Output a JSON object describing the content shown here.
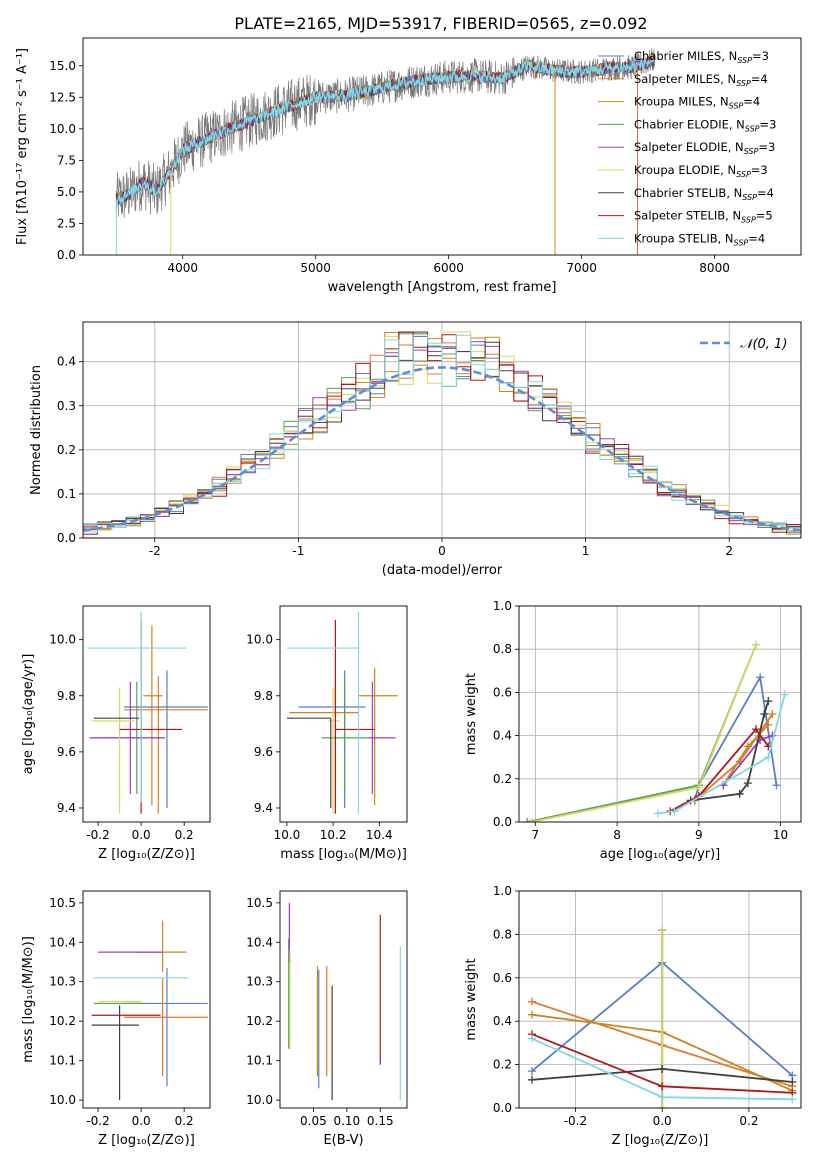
{
  "figure": {
    "title": "PLATE=2165, MJD=53917, FIBERID=0565, z=0.092"
  },
  "models": [
    {
      "name": "Chabrier MILES",
      "nssp": "3",
      "color": "#5a7ec4"
    },
    {
      "name": "Salpeter MILES",
      "nssp": "4",
      "color": "#e07b2a"
    },
    {
      "name": "Kroupa MILES",
      "nssp": "4",
      "color": "#c8871e"
    },
    {
      "name": "Chabrier ELODIE",
      "nssp": "3",
      "color": "#5aa05a"
    },
    {
      "name": "Salpeter ELODIE",
      "nssp": "3",
      "color": "#a040c0"
    },
    {
      "name": "Kroupa ELODIE",
      "nssp": "3",
      "color": "#d8d860"
    },
    {
      "name": "Chabrier STELIB",
      "nssp": "4",
      "color": "#404040"
    },
    {
      "name": "Salpeter STELIB",
      "nssp": "5",
      "color": "#b01818"
    },
    {
      "name": "Kroupa STELIB",
      "nssp": "4",
      "color": "#80d8e0"
    }
  ],
  "chart_data": [
    {
      "id": "spectrum",
      "type": "line",
      "xlabel": "wavelength [Angstrom, rest frame]",
      "ylabel": "Flux [fλ10⁻¹⁷ erg cm⁻² s⁻¹ A⁻¹]",
      "xlim": [
        3250,
        8650
      ],
      "ylim": [
        0,
        17.2
      ],
      "xticks": [
        4000,
        5000,
        6000,
        7000,
        8000
      ],
      "yticks": [
        0.0,
        2.5,
        5.0,
        7.5,
        10.0,
        12.5,
        15.0
      ],
      "data_range": [
        3500,
        7550
      ],
      "continuum": {
        "x": [
          3500,
          3600,
          3700,
          3800,
          3900,
          4000,
          4200,
          4400,
          4600,
          4800,
          5000,
          5200,
          5400,
          5600,
          5800,
          6000,
          6200,
          6400,
          6600,
          6800,
          7000,
          7200,
          7400,
          7550
        ],
        "y": [
          4.4,
          4.8,
          5.8,
          5.0,
          6.5,
          8.3,
          9.3,
          10.2,
          11.0,
          11.8,
          12.5,
          12.6,
          13.0,
          13.5,
          13.9,
          14.1,
          14.2,
          14.0,
          15.0,
          14.6,
          14.5,
          14.8,
          14.9,
          15.5
        ]
      },
      "legend_loc": "upper right"
    },
    {
      "id": "residual-histogram",
      "type": "histogram",
      "xlabel": "(data-model)/error",
      "ylabel": "Normed distribution",
      "xlim": [
        -2.5,
        2.5
      ],
      "ylim": [
        0,
        0.49
      ],
      "xticks": [
        -2,
        -1,
        0,
        1,
        2
      ],
      "yticks": [
        0.0,
        0.1,
        0.2,
        0.3,
        0.4
      ],
      "gaussian_label": "𝒩(0, 1)",
      "gaussian_color": "#5b8ed6",
      "bin_edges_start": -2.5,
      "bin_width": 0.1,
      "grid": true
    },
    {
      "id": "age-vs-Z",
      "type": "errorbar",
      "xlabel": "Z [log₁₀(Z/Z⊙)]",
      "ylabel": "age  [log₁₀(age/yr)]",
      "xlim": [
        -0.27,
        0.32
      ],
      "ylim": [
        9.35,
        10.12
      ],
      "xticks": [
        -0.2,
        0.0,
        0.2
      ],
      "yticks": [
        9.4,
        9.6,
        9.8,
        10.0
      ],
      "points": [
        {
          "x": 0.12,
          "y": 9.76,
          "xerr": [
            0.2,
            0.19
          ],
          "yerr": [
            0.36,
            0.13
          ]
        },
        {
          "x": 0.08,
          "y": 9.75,
          "xerr": [
            0.16,
            0.23
          ],
          "yerr": [
            0.37,
            0.12
          ]
        },
        {
          "x": 0.05,
          "y": 9.8,
          "xerr": [
            0.04,
            0.05
          ],
          "yerr": [
            0.39,
            0.25
          ]
        },
        {
          "x": -0.02,
          "y": 9.65,
          "xerr": [
            0.22,
            0.13
          ],
          "yerr": [
            0.2,
            0.2
          ]
        },
        {
          "x": -0.05,
          "y": 9.65,
          "xerr": [
            0.19,
            0.16
          ],
          "yerr": [
            0.2,
            0.2
          ]
        },
        {
          "x": -0.1,
          "y": 9.71,
          "xerr": [
            0.13,
            0.07
          ],
          "yerr": [
            0.33,
            0.12
          ]
        },
        {
          "x": -0.2,
          "y": 9.72,
          "xerr": [
            0.02,
            0.19
          ],
          "yerr": [
            0.0,
            0.0
          ]
        },
        {
          "x": 0.0,
          "y": 9.68,
          "xerr": [
            0.1,
            0.19
          ],
          "yerr": [
            0.3,
            0.39
          ]
        },
        {
          "x": 0.0,
          "y": 9.97,
          "xerr": [
            0.25,
            0.21
          ],
          "yerr": [
            0.55,
            0.13
          ]
        }
      ]
    },
    {
      "id": "age-vs-mass",
      "type": "errorbar",
      "xlabel": "mass [log₁₀(M/M⊙)]",
      "ylabel": "",
      "xlim": [
        9.97,
        10.52
      ],
      "ylim": [
        9.35,
        10.12
      ],
      "xticks": [
        10.0,
        10.2,
        10.4
      ],
      "yticks": [
        9.4,
        9.6,
        9.8,
        10.0
      ],
      "points": [
        {
          "x": 10.25,
          "y": 9.76,
          "xerr": [
            0.2,
            0.09
          ],
          "yerr": [
            0.36,
            0.13
          ]
        },
        {
          "x": 10.21,
          "y": 9.74,
          "xerr": [
            0.2,
            0.1
          ],
          "yerr": [
            0.36,
            0.12
          ]
        },
        {
          "x": 10.38,
          "y": 9.8,
          "xerr": [
            0.07,
            0.1
          ],
          "yerr": [
            0.39,
            0.1
          ]
        },
        {
          "x": 10.25,
          "y": 9.65,
          "xerr": [
            0.1,
            0.1
          ],
          "yerr": [
            0.2,
            0.2
          ]
        },
        {
          "x": 10.37,
          "y": 9.65,
          "xerr": [
            0.02,
            0.1
          ],
          "yerr": [
            0.2,
            0.2
          ]
        },
        {
          "x": 10.2,
          "y": 9.71,
          "xerr": [
            0.02,
            0.03
          ],
          "yerr": [
            0.33,
            0.12
          ]
        },
        {
          "x": 10.19,
          "y": 9.72,
          "xerr": [
            0.19,
            0.0
          ],
          "yerr": [
            0.32,
            0.0
          ]
        },
        {
          "x": 10.21,
          "y": 9.68,
          "xerr": [
            0.0,
            0.17
          ],
          "yerr": [
            0.3,
            0.39
          ]
        },
        {
          "x": 10.31,
          "y": 9.97,
          "xerr": [
            0.31,
            0.0
          ],
          "yerr": [
            0.59,
            0.13
          ]
        }
      ]
    },
    {
      "id": "weight-vs-age",
      "type": "line",
      "xlabel": "age  [log₁₀(age/yr)]",
      "ylabel": "mass weight",
      "xlim": [
        6.8,
        10.25
      ],
      "ylim": [
        0,
        1.0
      ],
      "xticks": [
        7,
        8,
        9,
        10
      ],
      "yticks": [
        0.0,
        0.2,
        0.4,
        0.6,
        0.8,
        1.0
      ],
      "series": [
        {
          "x": [
            8.95,
            9.0,
            9.75,
            9.95
          ],
          "y": [
            0.1,
            0.17,
            0.67,
            0.17
          ]
        },
        {
          "x": [
            8.95,
            9.5,
            9.9
          ],
          "y": [
            0.1,
            0.28,
            0.5
          ]
        },
        {
          "x": [
            9.3,
            9.6,
            9.85
          ],
          "y": [
            0.17,
            0.35,
            0.45
          ]
        },
        {
          "x": [
            6.9,
            9.0,
            9.7
          ],
          "y": [
            0.0,
            0.17,
            0.82
          ]
        },
        {
          "x": [
            9.3,
            9.75,
            9.9
          ],
          "y": [
            0.17,
            0.38,
            0.4
          ]
        },
        {
          "x": [
            6.95,
            9.0,
            9.7
          ],
          "y": [
            0.0,
            0.16,
            0.82
          ]
        },
        {
          "x": [
            8.9,
            9.5,
            9.6,
            9.8,
            9.85
          ],
          "y": [
            0.1,
            0.13,
            0.18,
            0.5,
            0.56
          ]
        },
        {
          "x": [
            8.65,
            9.0,
            9.7,
            9.85
          ],
          "y": [
            0.05,
            0.12,
            0.43,
            0.35
          ]
        },
        {
          "x": [
            8.5,
            8.7,
            9.85,
            10.05
          ],
          "y": [
            0.04,
            0.05,
            0.3,
            0.59
          ]
        }
      ]
    },
    {
      "id": "mass-vs-Z",
      "type": "errorbar",
      "xlabel": "Z [log₁₀(Z/Z⊙)]",
      "ylabel": "mass [log₁₀(M/M⊙)]",
      "xlim": [
        -0.27,
        0.32
      ],
      "ylim": [
        9.98,
        10.53
      ],
      "xticks": [
        -0.2,
        0.0,
        0.2
      ],
      "yticks": [
        10.0,
        10.1,
        10.2,
        10.3,
        10.4,
        10.5
      ],
      "points": [
        {
          "x": 0.12,
          "y": 10.245,
          "xerr": [
            0.2,
            0.19
          ],
          "yerr": [
            0.21,
            0.09
          ]
        },
        {
          "x": 0.1,
          "y": 10.21,
          "xerr": [
            0.18,
            0.21
          ],
          "yerr": [
            0.15,
            0.1
          ]
        },
        {
          "x": 0.1,
          "y": 10.375,
          "xerr": [
            0.12,
            0.11
          ],
          "yerr": [
            0.05,
            0.08
          ]
        },
        {
          "x": -0.1,
          "y": 10.245,
          "xerr": [
            0.12,
            0.13
          ],
          "yerr": [
            0.0,
            0.0
          ]
        },
        {
          "x": -0.1,
          "y": 10.375,
          "xerr": [
            0.1,
            0.2
          ],
          "yerr": [
            0.0,
            0.0
          ]
        },
        {
          "x": -0.1,
          "y": 10.25,
          "xerr": [
            0.1,
            0.1
          ],
          "yerr": [
            0.0,
            0.0
          ]
        },
        {
          "x": -0.1,
          "y": 10.19,
          "xerr": [
            0.13,
            0.09
          ],
          "yerr": [
            0.19,
            0.05
          ]
        },
        {
          "x": -0.1,
          "y": 10.215,
          "xerr": [
            0.13,
            0.19
          ],
          "yerr": [
            0.0,
            0.0
          ]
        },
        {
          "x": 0.0,
          "y": 10.31,
          "xerr": [
            0.22,
            0.22
          ],
          "yerr": [
            0.0,
            0.0
          ]
        }
      ]
    },
    {
      "id": "mass-vs-ebv",
      "type": "errorbar",
      "xlabel": "E(B-V)",
      "ylabel": "",
      "xlim": [
        0.0,
        0.19
      ],
      "ylim": [
        9.98,
        10.53
      ],
      "xticks": [
        0.05,
        0.1,
        0.15
      ],
      "yticks": [
        10.0,
        10.1,
        10.2,
        10.3,
        10.4,
        10.5
      ],
      "points": [
        {
          "x": 0.058,
          "y": 10.2,
          "yerr": [
            0.17,
            0.13
          ]
        },
        {
          "x": 0.07,
          "y": 10.2,
          "yerr": [
            0.14,
            0.14
          ]
        },
        {
          "x": 0.056,
          "y": 10.2,
          "yerr": [
            0.14,
            0.14
          ]
        },
        {
          "x": 0.013,
          "y": 10.27,
          "yerr": [
            0.14,
            0.14
          ]
        },
        {
          "x": 0.014,
          "y": 10.4,
          "yerr": [
            0.05,
            0.1
          ]
        },
        {
          "x": 0.015,
          "y": 10.25,
          "yerr": [
            0.12,
            0.13
          ]
        },
        {
          "x": 0.078,
          "y": 10.15,
          "yerr": [
            0.15,
            0.14
          ]
        },
        {
          "x": 0.15,
          "y": 10.28,
          "yerr": [
            0.19,
            0.19
          ]
        },
        {
          "x": 0.18,
          "y": 10.2,
          "yerr": [
            0.2,
            0.19
          ]
        }
      ]
    },
    {
      "id": "weight-vs-Z",
      "type": "line",
      "xlabel": "Z [log₁₀(Z/Z⊙)]",
      "ylabel": "mass weight",
      "xlim": [
        -0.33,
        0.32
      ],
      "ylim": [
        0,
        1.0
      ],
      "xticks": [
        -0.2,
        0.0,
        0.2
      ],
      "yticks": [
        0.0,
        0.2,
        0.4,
        0.6,
        0.8,
        1.0
      ],
      "series": [
        {
          "x": [
            -0.3,
            0.0,
            0.3
          ],
          "y": [
            0.17,
            0.67,
            0.15
          ]
        },
        {
          "x": [
            -0.3,
            0.0,
            0.3
          ],
          "y": [
            0.49,
            0.29,
            0.1
          ]
        },
        {
          "x": [
            -0.3,
            0.0,
            0.3
          ],
          "y": [
            0.43,
            0.35,
            0.08
          ]
        },
        {
          "x": [
            0.0,
            0.0
          ],
          "y": [
            0.0,
            0.82
          ]
        },
        {
          "x": [
            0.0,
            0.0
          ],
          "y": [
            0.0,
            0.82
          ]
        },
        {
          "x": [
            0.0,
            0.0
          ],
          "y": [
            0.0,
            0.82
          ]
        },
        {
          "x": [
            -0.3,
            0.0,
            0.3
          ],
          "y": [
            0.13,
            0.18,
            0.12
          ]
        },
        {
          "x": [
            -0.3,
            0.0,
            0.3
          ],
          "y": [
            0.34,
            0.1,
            0.07
          ]
        },
        {
          "x": [
            -0.3,
            0.0,
            0.3
          ],
          "y": [
            0.32,
            0.05,
            0.04
          ]
        }
      ]
    }
  ]
}
